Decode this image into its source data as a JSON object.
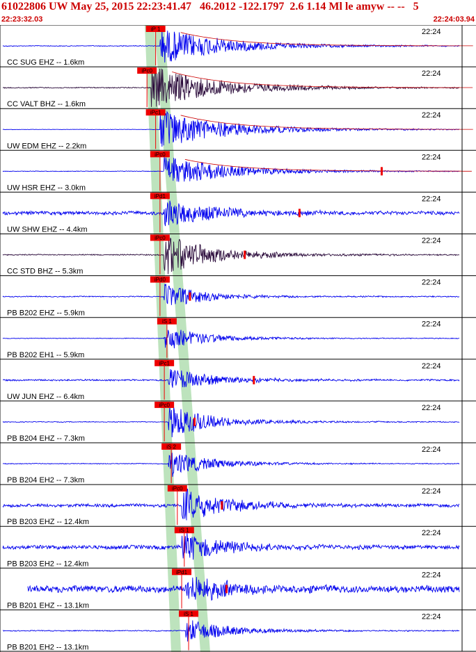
{
  "header": {
    "title": "61022806 UW May 25, 2015 22:23:41.47   46.2012 -122.1797  2.6 1.14 Ml le amyw -- --   5",
    "start_time": "22:23:32.03",
    "end_time": "22:24:03.94"
  },
  "colors": {
    "trace_blue": "#0000ee",
    "trace_dark": "#2a0a3a",
    "pick_red": "#ee0000",
    "window_green": "#b9e2b9",
    "coda_red": "#cc0000"
  },
  "chart_data": {
    "type": "line",
    "time_tick_label": "22:24",
    "traces": [
      {
        "label": "CC SUG EHZ -- 1.6km",
        "pick": "iP 1",
        "pick2": null,
        "color": "blue",
        "onset": 0.33,
        "amp": 0.85,
        "noise": 0.04,
        "coda": 1.0,
        "marker": null
      },
      {
        "label": "CC VALT BHZ -- 1.6km",
        "pick": "iPc0",
        "pick2": null,
        "color": "dark",
        "onset": 0.31,
        "amp": 1.0,
        "noise": 0.05,
        "coda": 1.0,
        "marker": null
      },
      {
        "label": "UW EDM EHZ -- 2.2km",
        "pick": "iPc1",
        "pick2": null,
        "color": "blue",
        "onset": 0.33,
        "amp": 0.9,
        "noise": 0.02,
        "coda": 1.0,
        "marker": null
      },
      {
        "label": "UW HSR EHZ -- 3.0km",
        "pick": "iPc0",
        "pick2": null,
        "color": "blue",
        "onset": 0.34,
        "amp": 0.75,
        "noise": 0.03,
        "coda": 0.95,
        "marker": 0.83
      },
      {
        "label": "UW SHW EHZ -- 4.4km",
        "pick": "iPd1",
        "pick2": null,
        "color": "blue",
        "onset": 0.34,
        "amp": 0.7,
        "noise": 0.18,
        "coda": 0.6,
        "marker": 0.65
      },
      {
        "label": "CC STD BHZ -- 5.3km",
        "pick": "iPc0",
        "pick2": null,
        "color": "dark",
        "onset": 0.34,
        "amp": 1.0,
        "noise": 0.06,
        "coda": 0.55,
        "marker": 0.53
      },
      {
        "label": "PB B202 EHZ -- 5.9km",
        "pick": "iPd0",
        "pick2": null,
        "color": "blue",
        "onset": 0.34,
        "amp": 0.6,
        "noise": 0.05,
        "coda": 0.4,
        "marker": 0.41
      },
      {
        "label": "PB B202 EH1 -- 5.9km",
        "pick": null,
        "pick2": "iS 1",
        "color": "blue",
        "onset": 0.34,
        "amp": 0.6,
        "noise": 0.03,
        "coda": 0.4,
        "marker": null
      },
      {
        "label": "UW JUN EHZ -- 6.4km",
        "pick": "iPc1",
        "pick2": null,
        "color": "blue",
        "onset": 0.35,
        "amp": 0.55,
        "noise": 0.08,
        "coda": 0.55,
        "marker": 0.55
      },
      {
        "label": "PB B204 EHZ -- 7.3km",
        "pick": "iPc0",
        "pick2": null,
        "color": "blue",
        "onset": 0.35,
        "amp": 0.8,
        "noise": 0.04,
        "coda": 0.42,
        "marker": 0.42
      },
      {
        "label": "PB B204 EH2 -- 7.3km",
        "pick": null,
        "pick2": "iS 2",
        "color": "blue",
        "onset": 0.35,
        "amp": 0.65,
        "noise": 0.04,
        "coda": 0.42,
        "marker": null
      },
      {
        "label": "PB B203 EHZ -- 12.4km",
        "pick": "iPc0",
        "pick2": null,
        "color": "blue",
        "onset": 0.38,
        "amp": 0.85,
        "noise": 0.16,
        "coda": 0.48,
        "marker": 0.48
      },
      {
        "label": "PB B203 EH2 -- 12.4km",
        "pick": null,
        "pick2": "iS 1",
        "color": "blue",
        "onset": 0.38,
        "amp": 0.75,
        "noise": 0.2,
        "coda": 0.48,
        "marker": null
      },
      {
        "label": "PB B201 EHZ -- 13.1km",
        "pick": "iPd1",
        "pick2": null,
        "color": "blue",
        "onset": 0.39,
        "amp": 0.7,
        "noise": 0.35,
        "coda": 0.49,
        "marker": 0.49
      },
      {
        "label": "PB B201 EH2 -- 13.1km",
        "pick": null,
        "pick2": "iS 1",
        "color": "blue",
        "onset": 0.39,
        "amp": 0.55,
        "noise": 0.05,
        "coda": 0.49,
        "marker": null
      }
    ]
  }
}
